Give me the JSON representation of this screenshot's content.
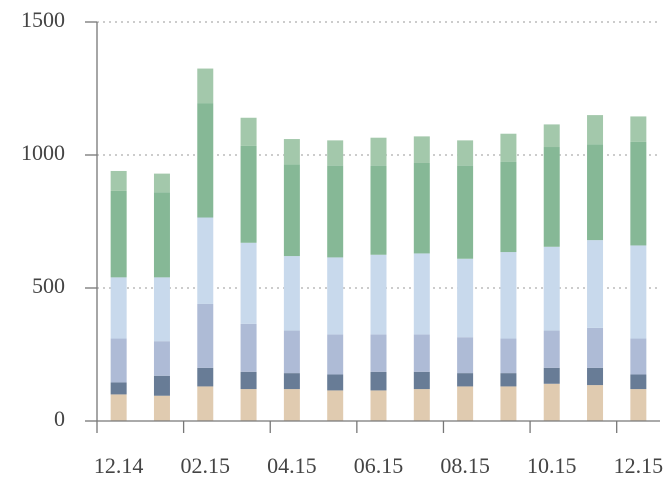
{
  "chart_data": {
    "type": "bar",
    "stacked": true,
    "categories": [
      "12.14",
      null,
      "02.15",
      null,
      "04.15",
      null,
      "06.15",
      null,
      "08.15",
      null,
      "10.15",
      null,
      "12.15"
    ],
    "series": [
      {
        "color": "#e0cbb0",
        "values": [
          100,
          95,
          130,
          120,
          120,
          115,
          115,
          120,
          130,
          130,
          140,
          135,
          120
        ]
      },
      {
        "color": "#687c96",
        "values": [
          45,
          75,
          70,
          65,
          60,
          60,
          70,
          65,
          50,
          50,
          60,
          65,
          55
        ]
      },
      {
        "color": "#aebbd6",
        "values": [
          165,
          130,
          240,
          180,
          160,
          150,
          140,
          140,
          135,
          130,
          140,
          150,
          135
        ]
      },
      {
        "color": "#c8d9ec",
        "values": [
          230,
          240,
          325,
          305,
          280,
          290,
          300,
          305,
          295,
          325,
          315,
          330,
          350
        ]
      },
      {
        "color": "#86b896",
        "values": [
          325,
          320,
          430,
          365,
          345,
          345,
          335,
          340,
          350,
          340,
          375,
          360,
          390
        ]
      },
      {
        "color": "#a3c8ab",
        "values": [
          75,
          70,
          130,
          105,
          95,
          95,
          105,
          100,
          95,
          105,
          85,
          110,
          95
        ]
      }
    ],
    "ylim": [
      0,
      1500
    ],
    "yticks": [
      0,
      500,
      1000,
      1500
    ],
    "grid": true
  }
}
